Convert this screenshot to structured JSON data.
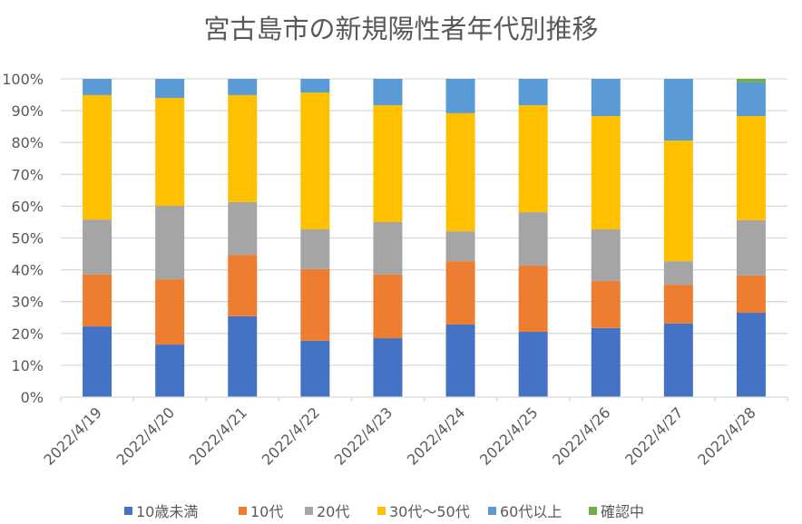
{
  "chart_data": {
    "type": "bar",
    "stacked": true,
    "normalized": true,
    "title": "宮古島市の新規陽性者年代別推移",
    "xlabel": "",
    "ylabel": "",
    "ylim": [
      0,
      100
    ],
    "y_ticks": [
      "0%",
      "10%",
      "20%",
      "30%",
      "40%",
      "50%",
      "60%",
      "70%",
      "80%",
      "90%",
      "100%"
    ],
    "grid": true,
    "legend_position": "bottom",
    "categories": [
      "2022/4/19",
      "2022/4/20",
      "2022/4/21",
      "2022/4/22",
      "2022/4/23",
      "2022/4/24",
      "2022/4/25",
      "2022/4/26",
      "2022/4/27",
      "2022/4/28"
    ],
    "series": [
      {
        "name": "10歳未満",
        "color": "#4472C4",
        "values": [
          22.2,
          16.5,
          25.4,
          17.7,
          18.5,
          22.8,
          20.5,
          21.7,
          23.1,
          26.5
        ]
      },
      {
        "name": "10代",
        "color": "#ED7D31",
        "values": [
          16.3,
          20.5,
          19.3,
          22.5,
          20.0,
          19.9,
          20.8,
          14.8,
          12.2,
          11.7
        ]
      },
      {
        "name": "20代",
        "color": "#A5A5A5",
        "values": [
          17.3,
          23.1,
          16.6,
          12.5,
          16.5,
          9.4,
          16.8,
          16.2,
          7.4,
          17.4
        ]
      },
      {
        "name": "30代～50代",
        "color": "#FFC000",
        "values": [
          39.1,
          33.9,
          33.6,
          43.0,
          36.7,
          37.1,
          33.6,
          35.6,
          37.9,
          32.7
        ]
      },
      {
        "name": "60代以上",
        "color": "#5B9BD5",
        "values": [
          5.1,
          6.0,
          5.1,
          4.3,
          8.3,
          10.8,
          8.3,
          11.7,
          19.4,
          10.6
        ]
      },
      {
        "name": "確認中",
        "color": "#70AD47",
        "values": [
          0,
          0,
          0,
          0,
          0,
          0,
          0,
          0,
          0,
          1.1
        ]
      }
    ]
  }
}
